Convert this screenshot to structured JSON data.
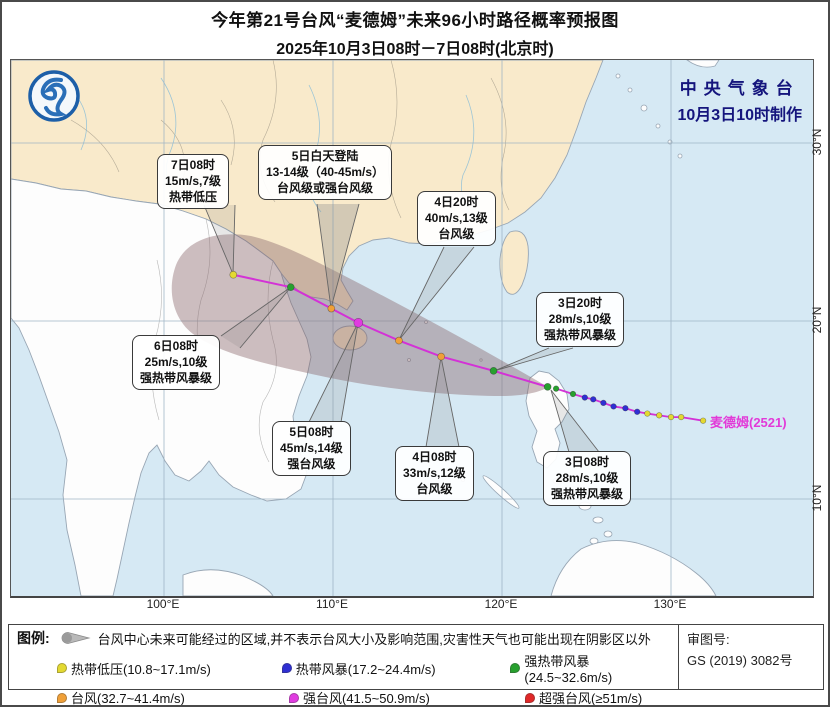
{
  "title": {
    "line1": "今年第21号台风“麦德姆”未来96小时路径概率预报图",
    "line2": "2025年10月3日08时－7日08时(北京时)"
  },
  "agency": {
    "name": "中央气象台",
    "issued": "10月3日10时制作"
  },
  "storm_label": "麦德姆(2521)",
  "axis": {
    "lon_labels": [
      "100°E",
      "110°E",
      "120°E",
      "130°E"
    ],
    "lat_labels": [
      "30°N",
      "20°N",
      "10°N"
    ]
  },
  "callouts": [
    {
      "id": "7d08",
      "lines": [
        "7日08时",
        "15m/s,7级",
        "热带低压"
      ]
    },
    {
      "id": "5d-landfall",
      "lines": [
        "5日白天登陆",
        "13-14级（40-45m/s）",
        "台风级或强台风级"
      ]
    },
    {
      "id": "4d20",
      "lines": [
        "4日20时",
        "40m/s,13级",
        "台风级"
      ]
    },
    {
      "id": "3d20",
      "lines": [
        "3日20时",
        "28m/s,10级",
        "强热带风暴级"
      ]
    },
    {
      "id": "6d08",
      "lines": [
        "6日08时",
        "25m/s,10级",
        "强热带风暴级"
      ]
    },
    {
      "id": "5d08",
      "lines": [
        "5日08时",
        "45m/s,14级",
        "强台风级"
      ]
    },
    {
      "id": "4d08",
      "lines": [
        "4日08时",
        "33m/s,12级",
        "台风级"
      ]
    },
    {
      "id": "3d08",
      "lines": [
        "3日08时",
        "28m/s,10级",
        "强热带风暴级"
      ]
    }
  ],
  "track": {
    "forecast": [
      {
        "time": "7日08时",
        "lon": 104.1,
        "lat": 22.6,
        "cat": "td"
      },
      {
        "time": "6日08时",
        "lon": 107.5,
        "lat": 21.9,
        "cat": "sts"
      },
      {
        "time": "5日白天登陆",
        "lon": 109.9,
        "lat": 20.7,
        "cat": "ty"
      },
      {
        "time": "5日08时",
        "lon": 111.5,
        "lat": 19.9,
        "cat": "sty"
      },
      {
        "time": "4日20时",
        "lon": 113.9,
        "lat": 18.9,
        "cat": "ty"
      },
      {
        "time": "4日08时",
        "lon": 116.4,
        "lat": 18.0,
        "cat": "ty"
      },
      {
        "time": "3日20时",
        "lon": 119.5,
        "lat": 17.2,
        "cat": "sts"
      },
      {
        "time": "3日08时",
        "lon": 122.7,
        "lat": 16.3,
        "cat": "sts"
      }
    ],
    "history": [
      {
        "lon": 123.2,
        "lat": 16.2,
        "cat": "sts"
      },
      {
        "lon": 124.2,
        "lat": 15.9,
        "cat": "sts"
      },
      {
        "lon": 124.9,
        "lat": 15.7,
        "cat": "ts"
      },
      {
        "lon": 125.4,
        "lat": 15.6,
        "cat": "ts"
      },
      {
        "lon": 126.0,
        "lat": 15.4,
        "cat": "ts"
      },
      {
        "lon": 126.6,
        "lat": 15.2,
        "cat": "ts"
      },
      {
        "lon": 127.3,
        "lat": 15.1,
        "cat": "ts"
      },
      {
        "lon": 128.0,
        "lat": 14.9,
        "cat": "ts"
      },
      {
        "lon": 128.6,
        "lat": 14.8,
        "cat": "td"
      },
      {
        "lon": 129.3,
        "lat": 14.7,
        "cat": "td"
      },
      {
        "lon": 130.0,
        "lat": 14.6,
        "cat": "td"
      },
      {
        "lon": 130.6,
        "lat": 14.6,
        "cat": "td"
      },
      {
        "lon": 131.9,
        "lat": 14.4,
        "cat": "td"
      }
    ]
  },
  "colors": {
    "td": "#e3d931",
    "ts": "#2f2fd3",
    "sts": "#27a02e",
    "ty": "#f0a038",
    "sty": "#e03ce0",
    "sup": "#e02828",
    "track_line": "#d332d6",
    "cone": "rgba(135,100,105,0.42)",
    "storm_label": "#e23ad8",
    "agency_text": "#15157d",
    "sea": "#d6e9f4",
    "china_land": "#f9eacb"
  },
  "legend": {
    "caption": "图例:",
    "cone_note": "台风中心未来可能经过的区域,并不表示台风大小及影响范围,灾害性天气也可能出现在阴影区以外",
    "items": [
      {
        "key": "td",
        "label": "热带低压(10.8~17.1m/s)"
      },
      {
        "key": "ts",
        "label": "热带风暴(17.2~24.4m/s)"
      },
      {
        "key": "sts",
        "label": "强热带风暴(24.5~32.6m/s)"
      },
      {
        "key": "ty",
        "label": "台风(32.7~41.4m/s)"
      },
      {
        "key": "sty",
        "label": "强台风(41.5~50.9m/s)"
      },
      {
        "key": "sup",
        "label": "超强台风(≥51m/s)"
      }
    ],
    "approval": {
      "label": "审图号:",
      "number": "GS (2019) 3082号"
    }
  }
}
